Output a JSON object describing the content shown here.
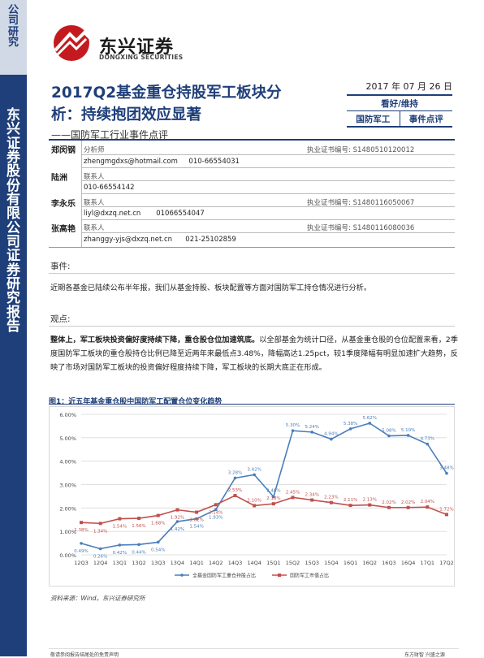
{
  "sidebar": {
    "category": "公司研究",
    "report_type": "东兴证券股份有限公司证券研究报告"
  },
  "brand": {
    "name_cn": "东兴证券",
    "name_en": "DONGXING SECURITIES"
  },
  "header": {
    "title": "2017Q2基金重仓持股军工板块分析：持续抱团效应显著",
    "subtitle": "——国防军工行业事件点评",
    "date": "2017 年 07 月 26 日",
    "rating": "看好/维持",
    "industry": "国防军工",
    "report_kind": "事件点评"
  },
  "analysts": [
    {
      "name": "郑闵钢",
      "role": "分析师",
      "cert_label": "执业证书编号:",
      "cert": "S1480510120012",
      "email": "zhengmgdxs@hotmail.com",
      "phone": "010-66554031"
    },
    {
      "name": "陆洲",
      "role": "联系人",
      "phone": "010-66554142"
    },
    {
      "name": "李永乐",
      "role": "联系人",
      "cert_label": "执业证书编号:",
      "cert": "S1480116050067",
      "email": "liyl@dxzq.net.cn",
      "phone": "01066554047"
    },
    {
      "name": "张高艳",
      "role": "联系人",
      "cert_label": "执业证书编号:",
      "cert": "S1480116080036",
      "email": "zhanggy-yjs@dxzq.net.cn",
      "phone": "021-25102859"
    }
  ],
  "event": {
    "label": "事件:",
    "text": "近期各基金已陆续公布半年报，我们从基金持股、板块配置等方面对国防军工持仓情况进行分析。"
  },
  "view": {
    "label": "观点:",
    "bold": "整体上，军工板块投资偏好度持续下降，重仓股仓位加速筑底。",
    "text": "以全部基金为统计口径，从基金重仓股的仓位配置来看，2季度国防军工板块的重仓股持仓比例已降至近两年来最低点3.48%，降幅高达1.25pct，较1季度降幅有明显加速扩大趋势，反映了市场对国防军工板块的投资偏好程度持续下降，军工板块的长期大底正在形成。"
  },
  "figure": {
    "title": "图1：近五年基金重仓股中国防军工配置仓位变化趋势",
    "source": "资料来源：Wind，东兴证券研究所"
  },
  "chart_data": {
    "type": "line",
    "categories": [
      "12Q3",
      "12Q4",
      "13Q1",
      "13Q2",
      "13Q3",
      "13Q4",
      "14Q1",
      "14Q2",
      "14Q3",
      "14Q4",
      "15Q1",
      "15Q2",
      "15Q3",
      "15Q4",
      "16Q1",
      "16Q2",
      "16Q3",
      "16Q4",
      "17Q1",
      "17Q2"
    ],
    "series": [
      {
        "name": "全基金国防军工重仓持股占比",
        "color": "#4a7ebb",
        "values": [
          0.49,
          0.26,
          0.42,
          0.44,
          0.54,
          1.42,
          1.54,
          1.93,
          3.28,
          3.42,
          2.48,
          5.3,
          5.24,
          4.94,
          5.38,
          5.62,
          5.08,
          5.1,
          4.73,
          3.48
        ]
      },
      {
        "name": "国防军工市值占比",
        "color": "#c0504d",
        "values": [
          1.38,
          1.34,
          1.54,
          1.56,
          1.68,
          1.92,
          1.82,
          2.14,
          2.53,
          2.1,
          2.18,
          2.45,
          2.34,
          2.23,
          2.11,
          2.13,
          2.02,
          2.02,
          2.04,
          1.72
        ]
      }
    ],
    "value_labels": {
      "blue": [
        "0.49%",
        "0.26%",
        "0.42%",
        "0.44%",
        "0.54%",
        "1.42%",
        "1.54%",
        "1.93%",
        "3.28%",
        "3.42%",
        "2.48%",
        "5.30%",
        "5.24%",
        "4.94%",
        "5.38%",
        "5.62%",
        "5.08%",
        "5.10%",
        "4.73%",
        "3.48%"
      ],
      "red": [
        "1.38%",
        "1.34%",
        "1.54%",
        "1.56%",
        "1.68%",
        "1.92%",
        "1.82%",
        "2.14%",
        "2.53%",
        "2.10%",
        "2.18%",
        "2.45%",
        "2.34%",
        "2.23%",
        "2.11%",
        "2.13%",
        "2.02%",
        "2.02%",
        "2.04%",
        "1.72%"
      ]
    },
    "y_ticks": [
      "0.00%",
      "1.00%",
      "2.00%",
      "3.00%",
      "4.00%",
      "5.00%",
      "6.00%"
    ],
    "ylim": [
      0,
      6
    ],
    "grid": true,
    "legend": "bottom"
  },
  "footer": {
    "disclaimer": "敬请参阅报告结尾处的免责声明",
    "motto": "东方财智  兴盛之源"
  }
}
